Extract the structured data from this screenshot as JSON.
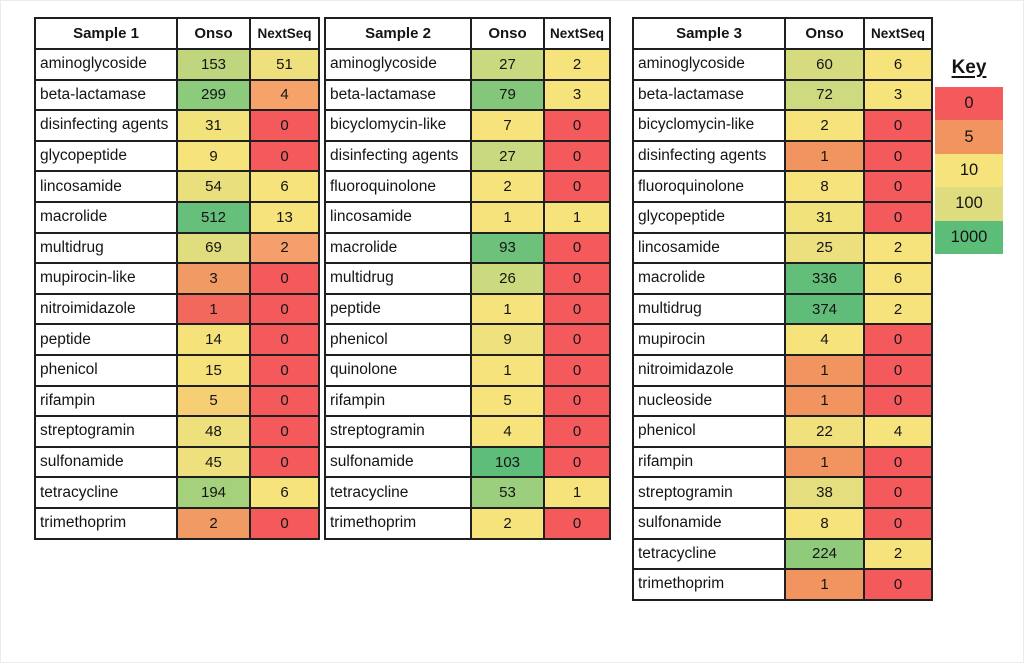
{
  "page": {
    "background": "#ffffff",
    "edge_border_color": "#ebebeb",
    "cell_border_color": "#1f1f1f",
    "text_color": "#141414"
  },
  "chart_data": {
    "type": "heatmap",
    "legend_position": "right",
    "tables": [
      {
        "title": "Sample 1",
        "columns": [
          "Onso",
          "NextSeq"
        ],
        "rows": [
          {
            "name": "aminoglycoside",
            "values": [
              153,
              51
            ],
            "colors": [
              "#BFD67E",
              "#EDE07D"
            ]
          },
          {
            "name": "beta-lactamase",
            "values": [
              299,
              4
            ],
            "colors": [
              "#8CCA7C",
              "#F5A36B"
            ]
          },
          {
            "name": "disinfecting agents",
            "values": [
              31,
              0
            ],
            "colors": [
              "#F2E27C",
              "#F4595C"
            ]
          },
          {
            "name": "glycopeptide",
            "values": [
              9,
              0
            ],
            "colors": [
              "#F6E37C",
              "#F4595C"
            ]
          },
          {
            "name": "lincosamide",
            "values": [
              54,
              6
            ],
            "colors": [
              "#EADF7D",
              "#F6E37C"
            ]
          },
          {
            "name": "macrolide",
            "values": [
              512,
              13
            ],
            "colors": [
              "#66BF7A",
              "#F6E37C"
            ]
          },
          {
            "name": "multidrug",
            "values": [
              69,
              2
            ],
            "colors": [
              "#DFDD7E",
              "#F5A06C"
            ]
          },
          {
            "name": "mupirocin-like",
            "values": [
              3,
              0
            ],
            "colors": [
              "#F09A64",
              "#F4595C"
            ]
          },
          {
            "name": "nitroimidazole",
            "values": [
              1,
              0
            ],
            "colors": [
              "#F3685D",
              "#F4595C"
            ]
          },
          {
            "name": "peptide",
            "values": [
              14,
              0
            ],
            "colors": [
              "#F6E27B",
              "#F4595C"
            ]
          },
          {
            "name": "phenicol",
            "values": [
              15,
              0
            ],
            "colors": [
              "#F6E27B",
              "#F4595C"
            ]
          },
          {
            "name": "rifampin",
            "values": [
              5,
              0
            ],
            "colors": [
              "#F6CE74",
              "#F4595C"
            ]
          },
          {
            "name": "streptogramin",
            "values": [
              48,
              0
            ],
            "colors": [
              "#EDE07D",
              "#F4595C"
            ]
          },
          {
            "name": "sulfonamide",
            "values": [
              45,
              0
            ],
            "colors": [
              "#EDE07D",
              "#F4595C"
            ]
          },
          {
            "name": "tetracycline",
            "values": [
              194,
              6
            ],
            "colors": [
              "#A5D17D",
              "#F6E37C"
            ]
          },
          {
            "name": "trimethoprim",
            "values": [
              2,
              0
            ],
            "colors": [
              "#F09A64",
              "#F4595C"
            ]
          }
        ]
      },
      {
        "title": "Sample 2",
        "columns": [
          "Onso",
          "NextSeq"
        ],
        "rows": [
          {
            "name": "aminoglycoside",
            "values": [
              27,
              2
            ],
            "colors": [
              "#C8D97F",
              "#F6E37C"
            ]
          },
          {
            "name": "beta-lactamase",
            "values": [
              79,
              3
            ],
            "colors": [
              "#84C77B",
              "#F6E37C"
            ]
          },
          {
            "name": "bicyclomycin-like",
            "values": [
              7,
              0
            ],
            "colors": [
              "#F6E37C",
              "#F4595C"
            ]
          },
          {
            "name": "disinfecting agents",
            "values": [
              27,
              0
            ],
            "colors": [
              "#C8D97F",
              "#F4595C"
            ]
          },
          {
            "name": "fluoroquinolone",
            "values": [
              2,
              0
            ],
            "colors": [
              "#F6E37C",
              "#F4595C"
            ]
          },
          {
            "name": "lincosamide",
            "values": [
              1,
              1
            ],
            "colors": [
              "#F6E37C",
              "#F6E37C"
            ]
          },
          {
            "name": "macrolide",
            "values": [
              93,
              0
            ],
            "colors": [
              "#6EC17B",
              "#F4595C"
            ]
          },
          {
            "name": "multidrug",
            "values": [
              26,
              0
            ],
            "colors": [
              "#CBDA7F",
              "#F4595C"
            ]
          },
          {
            "name": "peptide",
            "values": [
              1,
              0
            ],
            "colors": [
              "#F6E37C",
              "#F4595C"
            ]
          },
          {
            "name": "phenicol",
            "values": [
              9,
              0
            ],
            "colors": [
              "#EFE17D",
              "#F4595C"
            ]
          },
          {
            "name": "quinolone",
            "values": [
              1,
              0
            ],
            "colors": [
              "#F6E37C",
              "#F4595C"
            ]
          },
          {
            "name": "rifampin",
            "values": [
              5,
              0
            ],
            "colors": [
              "#F6E37C",
              "#F4595C"
            ]
          },
          {
            "name": "streptogramin",
            "values": [
              4,
              0
            ],
            "colors": [
              "#F6E37C",
              "#F4595C"
            ]
          },
          {
            "name": "sulfonamide",
            "values": [
              103,
              0
            ],
            "colors": [
              "#5DBD79",
              "#F4595C"
            ]
          },
          {
            "name": "tetracycline",
            "values": [
              53,
              1
            ],
            "colors": [
              "#9CCF7D",
              "#F6E37C"
            ]
          },
          {
            "name": "trimethoprim",
            "values": [
              2,
              0
            ],
            "colors": [
              "#F6E37C",
              "#F4595C"
            ]
          }
        ]
      },
      {
        "title": "Sample 3",
        "columns": [
          "Onso",
          "NextSeq"
        ],
        "rows": [
          {
            "name": "aminoglycoside",
            "values": [
              60,
              6
            ],
            "colors": [
              "#D6DB7F",
              "#F6E37C"
            ]
          },
          {
            "name": "beta-lactamase",
            "values": [
              72,
              3
            ],
            "colors": [
              "#CDDA7F",
              "#F6E37C"
            ]
          },
          {
            "name": "bicyclomycin-like",
            "values": [
              2,
              0
            ],
            "colors": [
              "#F6E37C",
              "#F4595C"
            ]
          },
          {
            "name": "disinfecting agents",
            "values": [
              1,
              0
            ],
            "colors": [
              "#F2945F",
              "#F4595C"
            ]
          },
          {
            "name": "fluoroquinolone",
            "values": [
              8,
              0
            ],
            "colors": [
              "#F6E37C",
              "#F4595C"
            ]
          },
          {
            "name": "glycopeptide",
            "values": [
              31,
              0
            ],
            "colors": [
              "#F2E27C",
              "#F4595C"
            ]
          },
          {
            "name": "lincosamide",
            "values": [
              25,
              2
            ],
            "colors": [
              "#EBE07D",
              "#F6E37C"
            ]
          },
          {
            "name": "macrolide",
            "values": [
              336,
              6
            ],
            "colors": [
              "#63BE7A",
              "#F6E37C"
            ]
          },
          {
            "name": "multidrug",
            "values": [
              374,
              2
            ],
            "colors": [
              "#5FBD79",
              "#F6E37C"
            ]
          },
          {
            "name": "mupirocin",
            "values": [
              4,
              0
            ],
            "colors": [
              "#F6E37C",
              "#F4595C"
            ]
          },
          {
            "name": "nitroimidazole",
            "values": [
              1,
              0
            ],
            "colors": [
              "#F2945F",
              "#F4595C"
            ]
          },
          {
            "name": "nucleoside",
            "values": [
              1,
              0
            ],
            "colors": [
              "#F2945F",
              "#F4595C"
            ]
          },
          {
            "name": "phenicol",
            "values": [
              22,
              4
            ],
            "colors": [
              "#F0E17D",
              "#F6E37C"
            ]
          },
          {
            "name": "rifampin",
            "values": [
              1,
              0
            ],
            "colors": [
              "#F2945F",
              "#F4595C"
            ]
          },
          {
            "name": "streptogramin",
            "values": [
              38,
              0
            ],
            "colors": [
              "#E4DE7F",
              "#F4595C"
            ]
          },
          {
            "name": "sulfonamide",
            "values": [
              8,
              0
            ],
            "colors": [
              "#F6E37C",
              "#F4595C"
            ]
          },
          {
            "name": "tetracycline",
            "values": [
              224,
              2
            ],
            "colors": [
              "#90CB7C",
              "#F6E37C"
            ]
          },
          {
            "name": "trimethoprim",
            "values": [
              1,
              0
            ],
            "colors": [
              "#F2945F",
              "#F4595C"
            ]
          }
        ]
      }
    ],
    "key": {
      "title": "Key",
      "entries": [
        {
          "label": "0",
          "color": "#F4595C"
        },
        {
          "label": "5",
          "color": "#F2945F"
        },
        {
          "label": "10",
          "color": "#F6E37C"
        },
        {
          "label": "100",
          "color": "#DFDC7F"
        },
        {
          "label": "1000",
          "color": "#5CBD79"
        }
      ]
    }
  }
}
